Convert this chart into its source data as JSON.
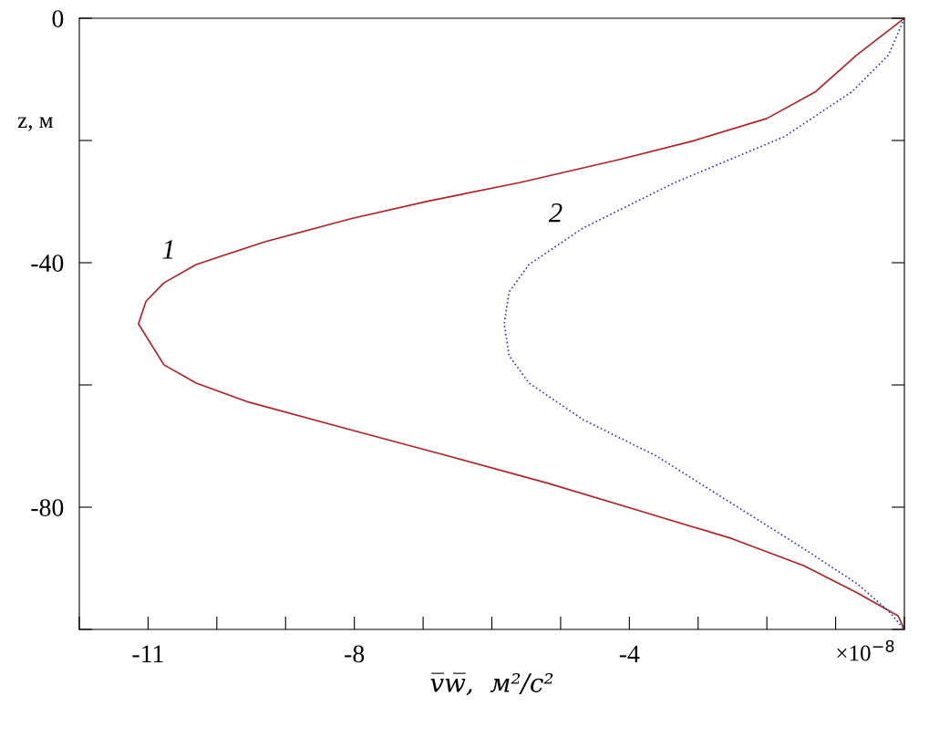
{
  "chart_data": {
    "type": "line",
    "xlabel": "v̅w̅,  м²/с²",
    "ylabel": "z, м",
    "xlim": [
      -12,
      0
    ],
    "ylim": [
      -100,
      0
    ],
    "xticks": [
      {
        "value": -12,
        "label": null
      },
      {
        "value": -11,
        "label": "-11"
      },
      {
        "value": -10,
        "label": null
      },
      {
        "value": -9,
        "label": null
      },
      {
        "value": -8,
        "label": "-8"
      },
      {
        "value": -7,
        "label": null
      },
      {
        "value": -6,
        "label": null
      },
      {
        "value": -5,
        "label": null
      },
      {
        "value": -4,
        "label": "-4"
      },
      {
        "value": -3,
        "label": null
      },
      {
        "value": -2,
        "label": null
      },
      {
        "value": -1,
        "label": null
      },
      {
        "value": 0,
        "label": null
      }
    ],
    "yticks": [
      {
        "value": 0,
        "label": "0"
      },
      {
        "value": -20,
        "label": null
      },
      {
        "value": -40,
        "label": "-40"
      },
      {
        "value": -60,
        "label": null
      },
      {
        "value": -80,
        "label": "-80"
      },
      {
        "value": -100,
        "label": null
      }
    ],
    "grid": false,
    "legend": false,
    "annotations": [
      "×10$^{−8}$"
    ],
    "series": [
      {
        "name": "1",
        "color": "#b22222",
        "line_style": "solid",
        "x": [
          0,
          -0.69,
          -1.29,
          -2.0,
          -3.08,
          -4.14,
          -5.6,
          -6.92,
          -8.05,
          -9.31,
          -10.3,
          -10.77,
          -11.03,
          -11.14,
          -10.77,
          -10.3,
          -9.57,
          -8.1,
          -6.64,
          -5.18,
          -3.85,
          -2.52,
          -1.46,
          -0.69,
          -0.09,
          0
        ],
        "values": [
          0,
          -6,
          -12,
          -16.4,
          -20.1,
          -23.1,
          -26.9,
          -29.9,
          -32.8,
          -36.6,
          -40.3,
          -43.3,
          -46.3,
          -50,
          -56.7,
          -59.7,
          -62.7,
          -67.2,
          -71.6,
          -76.1,
          -80.6,
          -85.1,
          -89.6,
          -94,
          -97.8,
          -100
        ]
      },
      {
        "name": "2",
        "color": "#3333cc",
        "line_style": "dotted",
        "x": [
          0,
          -0.23,
          -0.76,
          -1.75,
          -3.34,
          -4.67,
          -5.46,
          -5.75,
          -5.82,
          -5.75,
          -5.46,
          -4.67,
          -3.61,
          -2.55,
          -1.49,
          -0.69,
          -0.23,
          0
        ],
        "values": [
          0,
          -6,
          -12,
          -19.4,
          -26.9,
          -34.3,
          -40.3,
          -44.8,
          -50,
          -55.2,
          -59.7,
          -65.7,
          -71.6,
          -79.1,
          -86.6,
          -92.5,
          -97,
          -100
        ]
      }
    ]
  }
}
